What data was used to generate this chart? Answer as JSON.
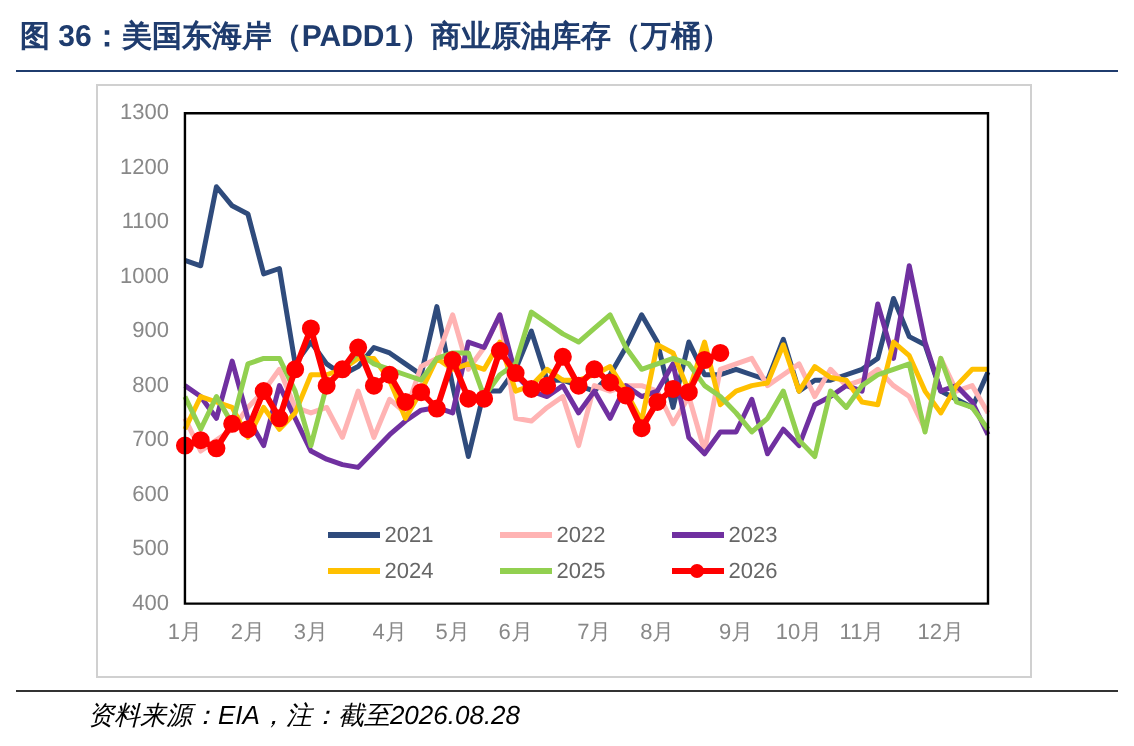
{
  "chart_data": {
    "type": "line",
    "title": "图 36：美国东海岸（PADD1）商业原油库存（万桶）",
    "annotations": [
      "资料来源：EIA，注：截至2026.08.28"
    ],
    "categories": [
      "1月",
      null,
      null,
      null,
      "2月",
      null,
      null,
      null,
      "3月",
      null,
      null,
      null,
      null,
      "4月",
      null,
      null,
      null,
      "5月",
      null,
      null,
      null,
      "6月",
      null,
      null,
      null,
      null,
      "7月",
      null,
      null,
      null,
      "8月",
      null,
      null,
      null,
      null,
      "9月",
      null,
      null,
      null,
      "10月",
      null,
      null,
      null,
      "11月",
      null,
      null,
      null,
      null,
      "12月",
      null,
      null,
      null
    ],
    "ylim": [
      400,
      1300
    ],
    "yticks": [
      400,
      500,
      600,
      700,
      800,
      900,
      1000,
      1100,
      1200,
      1300
    ],
    "grid": false,
    "legend": "bottom",
    "line_style": "solid",
    "series": [
      {
        "name": "2021",
        "color": "#2f4b7c",
        "values": [
          1030,
          1020,
          1165,
          1130,
          1115,
          1005,
          1015,
          840,
          880,
          840,
          820,
          835,
          870,
          860,
          840,
          820,
          945,
          800,
          670,
          790,
          790,
          830,
          900,
          810,
          810,
          800,
          790,
          820,
          870,
          930,
          880,
          760,
          880,
          820,
          820,
          830,
          820,
          810,
          885,
          790,
          810,
          810,
          820,
          830,
          850,
          960,
          890,
          875,
          790,
          775,
          760,
          825
        ]
      },
      {
        "name": "2022",
        "color": "#ffb3b3",
        "values": [
          740,
          680,
          700,
          720,
          760,
          790,
          830,
          760,
          750,
          760,
          705,
          790,
          705,
          775,
          750,
          835,
          850,
          930,
          830,
          870,
          930,
          740,
          735,
          760,
          780,
          690,
          800,
          790,
          800,
          800,
          790,
          730,
          780,
          680,
          830,
          840,
          850,
          800,
          820,
          840,
          780,
          830,
          800,
          810,
          830,
          800,
          780,
          720,
          850,
          790,
          800,
          750
        ]
      },
      {
        "name": "2023",
        "color": "#7030a0",
        "values": [
          800,
          780,
          740,
          845,
          740,
          690,
          800,
          740,
          680,
          665,
          655,
          650,
          680,
          710,
          735,
          755,
          760,
          750,
          880,
          870,
          930,
          820,
          790,
          780,
          800,
          750,
          790,
          740,
          800,
          780,
          790,
          840,
          705,
          675,
          715,
          715,
          775,
          675,
          720,
          690,
          765,
          780,
          800,
          790,
          950,
          850,
          1020,
          880,
          790,
          800,
          770,
          710
        ]
      },
      {
        "name": "2024",
        "color": "#ffc000",
        "values": [
          720,
          780,
          770,
          760,
          705,
          760,
          720,
          750,
          820,
          820,
          830,
          850,
          850,
          810,
          740,
          790,
          850,
          830,
          840,
          830,
          880,
          790,
          800,
          830,
          810,
          810,
          820,
          835,
          790,
          735,
          875,
          860,
          790,
          880,
          765,
          790,
          800,
          805,
          875,
          790,
          835,
          815,
          810,
          770,
          765,
          880,
          855,
          790,
          750,
          800,
          830,
          830
        ]
      },
      {
        "name": "2025",
        "color": "#92d050",
        "values": [
          780,
          720,
          780,
          730,
          840,
          850,
          850,
          790,
          690,
          800,
          830,
          860,
          840,
          830,
          820,
          810,
          850,
          860,
          860,
          780,
          820,
          840,
          935,
          915,
          895,
          880,
          905,
          930,
          870,
          830,
          840,
          850,
          840,
          800,
          780,
          750,
          715,
          740,
          790,
          700,
          670,
          790,
          760,
          800,
          820,
          830,
          840,
          715,
          850,
          770,
          760,
          720
        ]
      },
      {
        "name": "2026",
        "color": "#ff0000",
        "marker": "circle",
        "values": [
          690,
          700,
          685,
          730,
          720,
          790,
          740,
          830,
          905,
          800,
          830,
          870,
          800,
          820,
          770,
          788,
          758,
          847,
          776,
          776,
          864,
          823,
          794,
          800,
          853,
          800,
          830,
          806,
          782,
          722,
          770,
          794,
          788,
          847,
          860,
          null,
          null,
          null,
          null,
          null,
          null,
          null,
          null,
          null,
          null,
          null,
          null,
          null,
          null,
          null,
          null,
          null
        ]
      }
    ]
  }
}
